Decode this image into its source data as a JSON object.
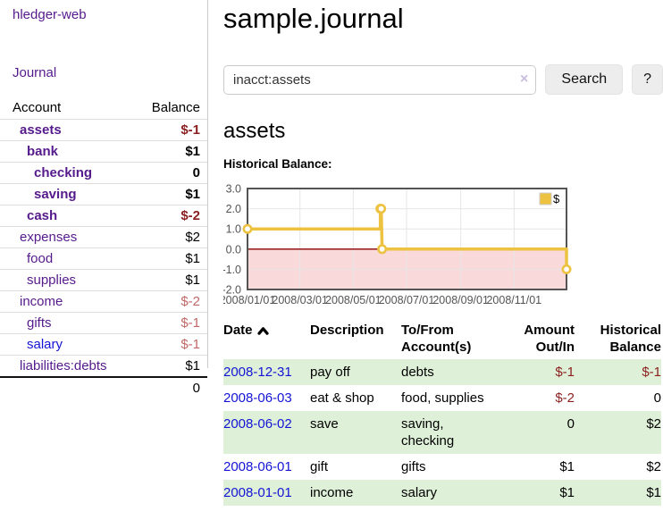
{
  "app": {
    "brand": "hledger-web"
  },
  "colors": {
    "link_visited_purple": "#551a8b",
    "link_unvisited_blue": "#1414d6",
    "negative_dark_red": "#8b1f1f",
    "negative_rose": "#c06868",
    "row_stripe_green": "#dff0d8",
    "button_gray": "#ededed"
  },
  "sidebar": {
    "nav": {
      "journal": "Journal"
    },
    "accounts": {
      "headers": {
        "account": "Account",
        "balance": "Balance"
      },
      "rows": [
        {
          "name": "assets",
          "depth": 1,
          "bold": true,
          "link": "visited",
          "balance": "$-1",
          "balance_color": "neg"
        },
        {
          "name": "bank",
          "depth": 2,
          "bold": true,
          "link": "visited",
          "balance": "$1",
          "balance_color": "plain"
        },
        {
          "name": "checking",
          "depth": 3,
          "bold": true,
          "link": "visited",
          "balance": "0",
          "balance_color": "plain"
        },
        {
          "name": "saving",
          "depth": 3,
          "bold": true,
          "link": "visited",
          "balance": "$1",
          "balance_color": "plain"
        },
        {
          "name": "cash",
          "depth": 2,
          "bold": true,
          "link": "visited",
          "balance": "$-2",
          "balance_color": "neg"
        },
        {
          "name": "expenses",
          "depth": 1,
          "bold": false,
          "link": "visited",
          "balance": "$2",
          "balance_color": "plain"
        },
        {
          "name": "food",
          "depth": 2,
          "bold": false,
          "link": "visited",
          "balance": "$1",
          "balance_color": "plain"
        },
        {
          "name": "supplies",
          "depth": 2,
          "bold": false,
          "link": "visited",
          "balance": "$1",
          "balance_color": "plain"
        },
        {
          "name": "income",
          "depth": 1,
          "bold": false,
          "link": "visited",
          "balance": "$-2",
          "balance_color": "rose"
        },
        {
          "name": "gifts",
          "depth": 2,
          "bold": false,
          "link": "visited",
          "balance": "$-1",
          "balance_color": "rose"
        },
        {
          "name": "salary",
          "depth": 2,
          "bold": false,
          "link": "unvisited",
          "balance": "$-1",
          "balance_color": "rose"
        },
        {
          "name": "liabilities:debts",
          "depth": 1,
          "bold": false,
          "link": "visited",
          "balance": "$1",
          "balance_color": "plain"
        }
      ],
      "total": "0"
    }
  },
  "main": {
    "title": "sample.journal",
    "search": {
      "value": "inacct:assets",
      "clear_icon": "×",
      "button": "Search",
      "help_button": "?"
    },
    "account_heading": "assets",
    "chart_label": "Historical Balance:"
  },
  "chart_data": {
    "type": "line",
    "title": "Historical Balance",
    "legend": "$",
    "legend_position": "top-right",
    "grid": true,
    "x_range": [
      "2008-01-01",
      "2008-12-31"
    ],
    "x_ticks": [
      "2008/01/01",
      "2008/03/01",
      "2008/05/01",
      "2008/07/01",
      "2008/09/01",
      "2008/11/01"
    ],
    "y_ticks": [
      3.0,
      2.0,
      1.0,
      0.0,
      -1.0,
      -2.0
    ],
    "ylim": [
      -2,
      3
    ],
    "series": [
      {
        "name": "$",
        "color": "#edc240",
        "points": [
          [
            "2008-01-01",
            1
          ],
          [
            "2008-06-01",
            1
          ],
          [
            "2008-06-01",
            2
          ],
          [
            "2008-06-02",
            2
          ],
          [
            "2008-06-03",
            0
          ],
          [
            "2008-12-31",
            0
          ],
          [
            "2008-12-31",
            -1
          ]
        ],
        "markers": [
          [
            "2008-01-01",
            1
          ],
          [
            "2008-06-01",
            2
          ],
          [
            "2008-06-02",
            2
          ],
          [
            "2008-06-03",
            0
          ],
          [
            "2008-12-31",
            -1
          ]
        ]
      }
    ],
    "negative_region_color": "#f9d9d9",
    "zero_line_color": "#8b0000",
    "gridline_color": "#e6e6e6",
    "border_color": "#545454",
    "axis_text_color": "#545454"
  },
  "register": {
    "headers": [
      "Date",
      "Description",
      "To/From Account(s)",
      "Amount Out/In",
      "Historical Balance"
    ],
    "rows": [
      {
        "date": "2008-12-31",
        "description": "pay off",
        "accounts": "debts",
        "amount": "$-1",
        "amount_neg": true,
        "balance": "$-1",
        "balance_neg": true
      },
      {
        "date": "2008-06-03",
        "description": "eat & shop",
        "accounts": "food, supplies",
        "amount": "$-2",
        "amount_neg": true,
        "balance": "0",
        "balance_neg": false
      },
      {
        "date": "2008-06-02",
        "description": "save",
        "accounts": "saving, checking",
        "amount": "0",
        "amount_neg": false,
        "balance": "$2",
        "balance_neg": false
      },
      {
        "date": "2008-06-01",
        "description": "gift",
        "accounts": "gifts",
        "amount": "$1",
        "amount_neg": false,
        "balance": "$2",
        "balance_neg": false
      },
      {
        "date": "2008-01-01",
        "description": "income",
        "accounts": "salary",
        "amount": "$1",
        "amount_neg": false,
        "balance": "$1",
        "balance_neg": false
      }
    ]
  }
}
